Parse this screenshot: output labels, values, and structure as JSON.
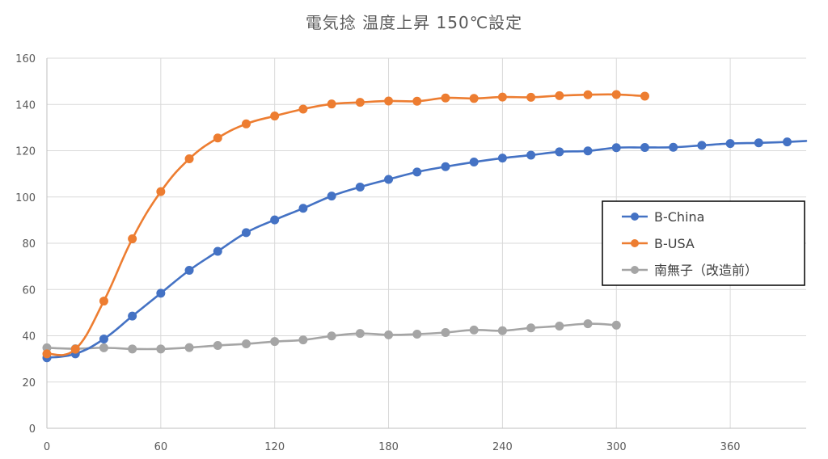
{
  "chart_data": {
    "type": "line",
    "title": "電気捻 温度上昇 150℃設定",
    "xlabel": "",
    "ylabel": "",
    "xlim": [
      0,
      400
    ],
    "ylim": [
      0,
      160
    ],
    "x_ticks": [
      0,
      60,
      120,
      180,
      240,
      300,
      360
    ],
    "y_ticks": [
      0,
      20,
      40,
      60,
      80,
      100,
      120,
      140,
      160
    ],
    "grid": true,
    "smooth": true,
    "legend_position": "right",
    "series": [
      {
        "name": "B-China",
        "color": "#4472C4",
        "x": [
          0,
          15,
          30,
          45,
          60,
          75,
          90,
          105,
          120,
          135,
          150,
          165,
          180,
          195,
          210,
          225,
          240,
          255,
          270,
          285,
          300,
          315,
          330,
          345,
          360,
          375,
          390
        ],
        "y": [
          30.5,
          32.2,
          38.6,
          48.5,
          58.4,
          68.3,
          76.5,
          84.6,
          90.1,
          95.1,
          100.4,
          104.3,
          107.6,
          110.8,
          113.1,
          115.1,
          116.8,
          118.1,
          119.5,
          119.9,
          121.3,
          121.4,
          121.5,
          122.3,
          123.1,
          123.4,
          123.8
        ],
        "x_end": 400,
        "y_end": 124.2
      },
      {
        "name": "B-USA",
        "color": "#ED7D31",
        "x": [
          0,
          15,
          30,
          45,
          60,
          75,
          90,
          105,
          120,
          135,
          150,
          165,
          180,
          195,
          210,
          225,
          240,
          255,
          270,
          285,
          300,
          315
        ],
        "y": [
          32.2,
          34.2,
          55.0,
          81.9,
          102.3,
          116.5,
          125.5,
          131.6,
          135.0,
          138.0,
          140.2,
          140.9,
          141.5,
          141.4,
          142.8,
          142.6,
          143.2,
          143.1,
          143.8,
          144.2,
          144.3,
          143.6
        ]
      },
      {
        "name": "南無子（改造前）",
        "color": "#A5A5A5",
        "x": [
          0,
          15,
          30,
          45,
          60,
          75,
          90,
          105,
          120,
          135,
          150,
          165,
          180,
          195,
          210,
          225,
          240,
          255,
          270,
          285,
          300
        ],
        "y": [
          34.8,
          34.4,
          34.8,
          34.3,
          34.3,
          34.9,
          35.8,
          36.5,
          37.5,
          38.2,
          39.9,
          41.0,
          40.4,
          40.7,
          41.4,
          42.5,
          42.2,
          43.4,
          44.2,
          45.2,
          44.6
        ]
      }
    ]
  }
}
